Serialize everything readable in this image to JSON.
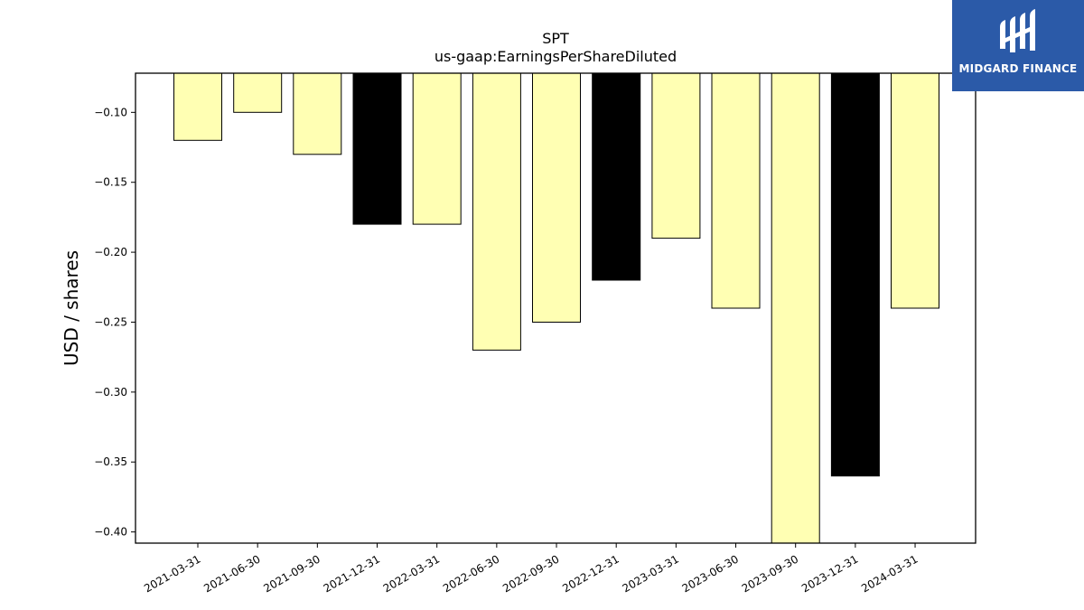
{
  "chart_data": {
    "type": "bar",
    "title": "SPT",
    "subtitle": "us-gaap:EarningsPerShareDiluted",
    "ylabel": "USD / shares",
    "xlabel": "",
    "ylim": [
      -0.408,
      -0.072
    ],
    "yticks": [
      -0.1,
      -0.15,
      -0.2,
      -0.25,
      -0.3,
      -0.35,
      -0.4
    ],
    "ytick_labels": [
      "−0.10",
      "−0.15",
      "−0.20",
      "−0.25",
      "−0.30",
      "−0.35",
      "−0.40"
    ],
    "categories": [
      "2021-03-31",
      "2021-06-30",
      "2021-09-30",
      "2021-12-31",
      "2022-03-31",
      "2022-06-30",
      "2022-09-30",
      "2022-12-31",
      "2023-03-31",
      "2023-06-30",
      "2023-09-30",
      "2023-12-31",
      "2024-03-31"
    ],
    "values": [
      -0.12,
      -0.1,
      -0.13,
      -0.18,
      -0.18,
      -0.27,
      -0.25,
      -0.22,
      -0.19,
      -0.24,
      -0.41,
      -0.36,
      -0.24
    ],
    "bar_colors": [
      "#ffffb3",
      "#ffffb3",
      "#ffffb3",
      "#000000",
      "#ffffb3",
      "#ffffb3",
      "#ffffb3",
      "#000000",
      "#ffffb3",
      "#ffffb3",
      "#ffffb3",
      "#000000",
      "#ffffb3"
    ],
    "grid": false
  },
  "brand": {
    "name": "MIDGARD FINANCE",
    "color": "#2b5aa8"
  }
}
